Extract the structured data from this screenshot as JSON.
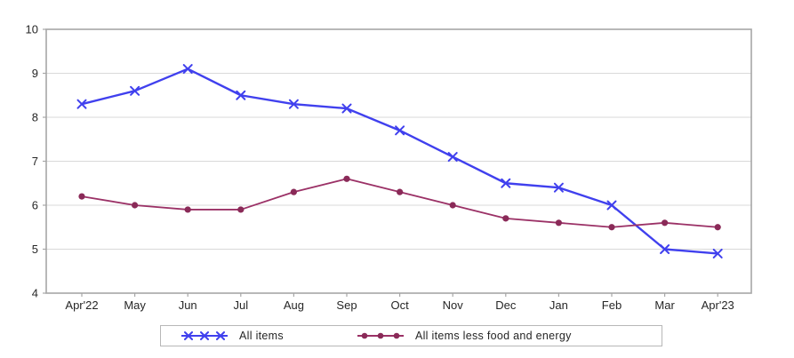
{
  "chart_data": {
    "type": "line",
    "categories": [
      "Apr'22",
      "May",
      "Jun",
      "Jul",
      "Aug",
      "Sep",
      "Oct",
      "Nov",
      "Dec",
      "Jan",
      "Feb",
      "Mar",
      "Apr'23"
    ],
    "series": [
      {
        "name": "All items",
        "marker": "x",
        "color": "#4040ee",
        "values": [
          8.3,
          8.6,
          9.1,
          8.5,
          8.3,
          8.2,
          7.7,
          7.1,
          6.5,
          6.4,
          6.0,
          5.0,
          4.9
        ]
      },
      {
        "name": "All items less food and energy",
        "marker": "circle",
        "color": "#9b3166",
        "marker_color": "#8a2a58",
        "values": [
          6.2,
          6.0,
          5.9,
          5.9,
          6.3,
          6.6,
          6.3,
          6.0,
          5.7,
          5.6,
          5.5,
          5.6,
          5.5
        ]
      }
    ],
    "title": "",
    "xlabel": "",
    "ylabel": "",
    "ylim": [
      4,
      10
    ],
    "yticks": [
      4,
      5,
      6,
      7,
      8,
      9,
      10
    ],
    "grid": "horizontal",
    "grid_color": "#d9d9d9",
    "border_color": "#a6a6a6",
    "tick_text_color": "#262626",
    "legend_position": "bottom"
  }
}
